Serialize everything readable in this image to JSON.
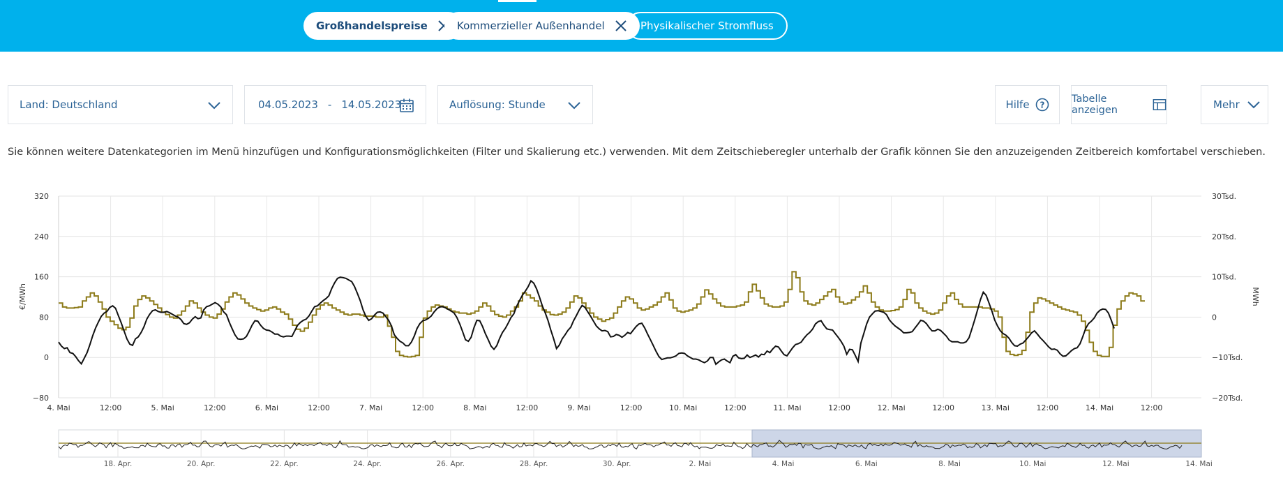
{
  "topnav": {
    "chips": [
      {
        "label": "Großhandelspreise",
        "state": "active"
      },
      {
        "label": "Kommerzieller Außenhandel",
        "state": "active"
      },
      {
        "label": "Physikalischer Stromfluss",
        "state": "inactive"
      }
    ]
  },
  "controls": {
    "country": "Land: Deutschland",
    "date_from": "04.05.2023",
    "date_sep": "-",
    "date_to": "14.05.2023",
    "resolution": "Auflösung: Stunde",
    "help": "Hilfe",
    "table": "Tabelle anzeigen",
    "more": "Mehr"
  },
  "description": "Sie können weitere Datenkategorien im Menü hinzufügen und Konfigurationsmöglichkeiten (Filter und Skalierung etc.) verwenden. Mit dem Zeitschieberegler unterhalb der Grafik können Sie den anzuzeigenden Zeitbereich komfortabel verschieben.",
  "colors": {
    "brand": "#00b1ec",
    "price_series": "#8c7a18",
    "trade_series": "#111111",
    "navigator_selection": "#cdd6e8"
  },
  "chart_data": {
    "type": "line",
    "x_labels": [
      "4. Mai",
      "12:00",
      "5. Mai",
      "12:00",
      "6. Mai",
      "12:00",
      "7. Mai",
      "12:00",
      "8. Mai",
      "12:00",
      "9. Mai",
      "12:00",
      "10. Mai",
      "12:00",
      "11. Mai",
      "12:00",
      "12. Mai",
      "12:00",
      "13. Mai",
      "12:00",
      "14. Mai",
      "12:00"
    ],
    "ylabel_left": "€/MWh",
    "ylabel_right": "MWh",
    "y_left_ticks": [
      "320",
      "240",
      "160",
      "80",
      "0",
      "−80"
    ],
    "y_right_ticks": [
      "30Tsd.",
      "20Tsd.",
      "10Tsd.",
      "0",
      "−10Tsd.",
      "−20Tsd."
    ],
    "ylim_left": [
      -80,
      320
    ],
    "ylim_right": [
      -20000,
      30000
    ],
    "series": [
      {
        "name": "Großhandelspreise",
        "style": "step",
        "axis": "left",
        "values": [
          108,
          100,
          98,
          98,
          99,
          100,
          112,
          120,
          128,
          122,
          110,
          96,
          80,
          72,
          65,
          58,
          55,
          60,
          78,
          102,
          115,
          122,
          118,
          112,
          105,
          98,
          90,
          85,
          80,
          78,
          84,
          92,
          102,
          112,
          108,
          98,
          90,
          84,
          80,
          78,
          86,
          96,
          110,
          120,
          128,
          124,
          116,
          108,
          102,
          98,
          95,
          92,
          94,
          98,
          100,
          96,
          90,
          86,
          76,
          64,
          56,
          52,
          58,
          70,
          84,
          96,
          104,
          108,
          104,
          98,
          94,
          90,
          86,
          84,
          86,
          86,
          84,
          82,
          82,
          82,
          80,
          80,
          84,
          62,
          40,
          12,
          4,
          2,
          1,
          2,
          4,
          40,
          78,
          92,
          100,
          104,
          102,
          100,
          96,
          92,
          90,
          88,
          88,
          86,
          88,
          92,
          100,
          108,
          102,
          92,
          85,
          82,
          80,
          84,
          92,
          100,
          112,
          128,
          124,
          118,
          112,
          102,
          94,
          90,
          85,
          84,
          86,
          90,
          98,
          110,
          122,
          118,
          108,
          98,
          88,
          80,
          76,
          72,
          75,
          78,
          88,
          100,
          112,
          120,
          116,
          108,
          98,
          94,
          96,
          100,
          104,
          110,
          120,
          128,
          114,
          98,
          92,
          90,
          92,
          94,
          98,
          106,
          120,
          134,
          126,
          116,
          108,
          102,
          100,
          100,
          100,
          102,
          104,
          110,
          130,
          145,
          132,
          118,
          106,
          102,
          100,
          100,
          102,
          110,
          135,
          170,
          158,
          130,
          112,
          106,
          104,
          108,
          115,
          122,
          130,
          135,
          120,
          110,
          106,
          108,
          114,
          120,
          130,
          142,
          128,
          110,
          100,
          94,
          92,
          92,
          93,
          95,
          100,
          115,
          135,
          128,
          108,
          98,
          92,
          88,
          86,
          88,
          94,
          108,
          122,
          128,
          115,
          106,
          100,
          100,
          100,
          100,
          100,
          98,
          98,
          96,
          92,
          80,
          40,
          12,
          6,
          4,
          6,
          14,
          50,
          90,
          108,
          118,
          116,
          112,
          108,
          104,
          100,
          96,
          94,
          92,
          90,
          84,
          72,
          54,
          30,
          12,
          4,
          2,
          2,
          20,
          64,
          96,
          112,
          122,
          128,
          126,
          122,
          112
        ]
      },
      {
        "name": "Kommerzieller Außenhandel",
        "style": "line",
        "axis": "right",
        "values": [
          -6200,
          -7200,
          -7800,
          -7600,
          -8800,
          -9000,
          -9800,
          -10800,
          -11600,
          -10200,
          -8800,
          -6800,
          -4600,
          -2700,
          -1200,
          200,
          1000,
          1400,
          2400,
          2800,
          2200,
          400,
          -1400,
          -3400,
          -5400,
          -6700,
          -7000,
          -5400,
          -4900,
          -3800,
          -2400,
          -500,
          700,
          1600,
          1800,
          1400,
          1200,
          1200,
          1400,
          1100,
          700,
          300,
          0,
          -600,
          -1600,
          -1800,
          -1400,
          -500,
          100,
          -400,
          -200,
          1800,
          2600,
          2800,
          3200,
          3600,
          3200,
          2500,
          1300,
          600,
          -1300,
          -2900,
          -4400,
          -5400,
          -5500,
          -5400,
          -4800,
          -3500,
          -2000,
          -900,
          -1000,
          -2000,
          -2800,
          -3200,
          -3300,
          -3700,
          -4200,
          -4200,
          -4700,
          -4900,
          -4700,
          -4700,
          -4800,
          -3400,
          -2000,
          -1300,
          -800,
          -500,
          300,
          1500,
          2600,
          2800,
          3500,
          4100,
          4600,
          5300,
          7100,
          8500,
          9600,
          9900,
          9800,
          9600,
          9200,
          8800,
          7600,
          5900,
          4100,
          1800,
          200,
          -800,
          -400,
          500,
          1200,
          1300,
          1000,
          100,
          -800,
          -2200,
          -4400,
          -5300,
          -6000,
          -6400,
          -7100,
          -7100,
          -6200,
          -4700,
          -2800,
          -1600,
          -900,
          -700,
          -300,
          300,
          1300,
          2100,
          2500,
          2600,
          2300,
          1900,
          1500,
          1000,
          -100,
          -1700,
          -3600,
          -5600,
          -6000,
          -5000,
          -2600,
          -800,
          -900,
          -2300,
          -4100,
          -5600,
          -7200,
          -8000,
          -7100,
          -5300,
          -3800,
          -2800,
          -1500,
          -100,
          800,
          2700,
          4100,
          5400,
          6400,
          7500,
          9000,
          8400,
          7000,
          5000,
          2800,
          1100,
          -800,
          -3200,
          -5400,
          -7800,
          -6900,
          -5400,
          -4400,
          -3300,
          -2500,
          -900,
          400,
          1800,
          2900,
          2400,
          1300,
          200,
          -1000,
          -2200,
          -2900,
          -3400,
          -3300,
          -3600,
          -4900,
          -4800,
          -4300,
          -4500,
          -5000,
          -4500,
          -3800,
          -4100,
          -3200,
          -2300,
          -1700,
          -1500,
          -2700,
          -4200,
          -5600,
          -7000,
          -8500,
          -9800,
          -10500,
          -10300,
          -10100,
          -10100,
          -9900,
          -9600,
          -9000,
          -8900,
          -9000,
          -9600,
          -10000,
          -10400,
          -10400,
          -10600,
          -11000,
          -11300,
          -10900,
          -10000,
          -10000,
          -11700,
          -11100,
          -10600,
          -10400,
          -10900,
          -11300,
          -9700,
          -9300,
          -10100,
          -10300,
          -10200,
          -9400,
          -10000,
          -9700,
          -9400,
          -9900,
          -9200,
          -9300,
          -8400,
          -8800,
          -7900,
          -7200,
          -7400,
          -8400,
          -9300,
          -9600,
          -8600,
          -7600,
          -6800,
          -6600,
          -6200,
          -5200,
          -4400,
          -3800,
          -3000,
          -1700,
          -1100,
          -900,
          -2000,
          -2900,
          -3100,
          -3200,
          -4100,
          -5000,
          -6000,
          -7200,
          -9200,
          -8000,
          -8100,
          -9500,
          -11000,
          -6400,
          -4100,
          -1700,
          0,
          800,
          1500,
          1600,
          1400,
          1200,
          600,
          -700,
          -1500,
          -2200,
          -2700,
          -3200,
          -3900,
          -3900,
          -3800,
          -3600,
          -2700,
          -1800,
          -800,
          -1000,
          -1600,
          -2600,
          -3400,
          -3400,
          -3000,
          -3300,
          -4000,
          -4700,
          -5700,
          -6100,
          -6100,
          -6100,
          -6400,
          -6400,
          -6100,
          -5100,
          -2900,
          -600,
          1800,
          4300,
          6200,
          5400,
          3500,
          1600,
          -700,
          -2200,
          -3400,
          -4100,
          -4500,
          -5200,
          -6300,
          -7100,
          -7200,
          -6700,
          -6400,
          -5600,
          -4800,
          -3900,
          -3400,
          -4200,
          -5100,
          -5800,
          -6600,
          -7400,
          -8000,
          -7900,
          -8200,
          -9100,
          -9700,
          -9600,
          -9000,
          -8300,
          -7800,
          -7600,
          -6600,
          -4800,
          -2800,
          -1600,
          -1000,
          -200,
          1000,
          1700,
          2000,
          1900,
          1000,
          -800,
          -2800
        ]
      }
    ],
    "navigator": {
      "x_labels": [
        "18. Apr.",
        "20. Apr.",
        "22. Apr.",
        "24. Apr.",
        "26. Apr.",
        "28. Apr.",
        "30. Apr.",
        "2. Mai",
        "4. Mai",
        "6. Mai",
        "8. Mai",
        "10. Mai",
        "12. Mai",
        "14. Mai"
      ],
      "selected_range": [
        "4. Mai",
        "14. Mai"
      ]
    }
  }
}
